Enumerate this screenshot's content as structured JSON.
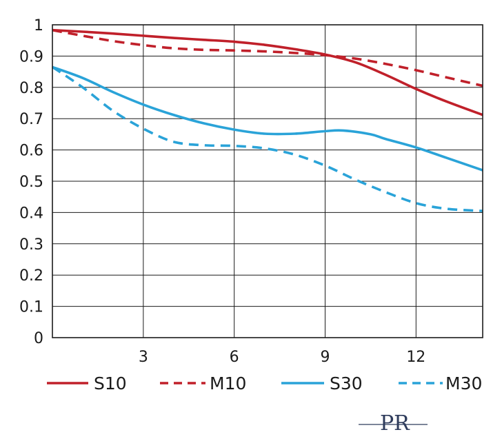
{
  "chart_data": {
    "type": "line",
    "title": "",
    "xlabel": "",
    "ylabel": "",
    "xlim": [
      0,
      14.2
    ],
    "ylim": [
      0,
      1
    ],
    "x_ticks": [
      3,
      6,
      9,
      12
    ],
    "y_ticks": [
      0,
      0.1,
      0.2,
      0.3,
      0.4,
      0.5,
      0.6,
      0.7,
      0.8,
      0.9,
      1
    ],
    "grid": true,
    "legend_position": "bottom",
    "series": [
      {
        "name": "S10",
        "color": "#c0202a",
        "dash": "solid",
        "points": [
          [
            0,
            0.983
          ],
          [
            1,
            0.978
          ],
          [
            2,
            0.972
          ],
          [
            3,
            0.965
          ],
          [
            4,
            0.958
          ],
          [
            5,
            0.952
          ],
          [
            6,
            0.946
          ],
          [
            7,
            0.936
          ],
          [
            8,
            0.922
          ],
          [
            9,
            0.905
          ],
          [
            10,
            0.88
          ],
          [
            11,
            0.84
          ],
          [
            12,
            0.795
          ],
          [
            13,
            0.755
          ],
          [
            14.2,
            0.712
          ]
        ]
      },
      {
        "name": "M10",
        "color": "#c0202a",
        "dash": "dashed",
        "points": [
          [
            0,
            0.983
          ],
          [
            1,
            0.965
          ],
          [
            2,
            0.948
          ],
          [
            3,
            0.935
          ],
          [
            4,
            0.925
          ],
          [
            5,
            0.92
          ],
          [
            6,
            0.918
          ],
          [
            7,
            0.915
          ],
          [
            8,
            0.91
          ],
          [
            9,
            0.903
          ],
          [
            10,
            0.892
          ],
          [
            11,
            0.875
          ],
          [
            12,
            0.855
          ],
          [
            13,
            0.832
          ],
          [
            14.2,
            0.805
          ]
        ]
      },
      {
        "name": "S30",
        "color": "#2aa3d8",
        "dash": "solid",
        "points": [
          [
            0,
            0.865
          ],
          [
            1,
            0.83
          ],
          [
            2,
            0.785
          ],
          [
            3,
            0.745
          ],
          [
            4,
            0.712
          ],
          [
            5,
            0.685
          ],
          [
            6,
            0.665
          ],
          [
            7,
            0.652
          ],
          [
            8,
            0.652
          ],
          [
            9,
            0.66
          ],
          [
            9.6,
            0.662
          ],
          [
            10.5,
            0.65
          ],
          [
            11,
            0.635
          ],
          [
            12,
            0.608
          ],
          [
            13,
            0.575
          ],
          [
            14.2,
            0.535
          ]
        ]
      },
      {
        "name": "M30",
        "color": "#2aa3d8",
        "dash": "dashed",
        "points": [
          [
            0,
            0.865
          ],
          [
            1,
            0.8
          ],
          [
            2,
            0.725
          ],
          [
            3,
            0.668
          ],
          [
            4,
            0.626
          ],
          [
            5,
            0.615
          ],
          [
            6,
            0.613
          ],
          [
            7,
            0.605
          ],
          [
            8,
            0.585
          ],
          [
            9,
            0.55
          ],
          [
            10,
            0.505
          ],
          [
            11,
            0.465
          ],
          [
            12,
            0.43
          ],
          [
            13,
            0.412
          ],
          [
            14.2,
            0.405
          ]
        ]
      }
    ],
    "legend": [
      {
        "label": "S10"
      },
      {
        "label": "M10"
      },
      {
        "label": "S30"
      },
      {
        "label": "M30"
      }
    ]
  },
  "logo": {
    "text": "PR",
    "color": "#2f3c5c"
  }
}
